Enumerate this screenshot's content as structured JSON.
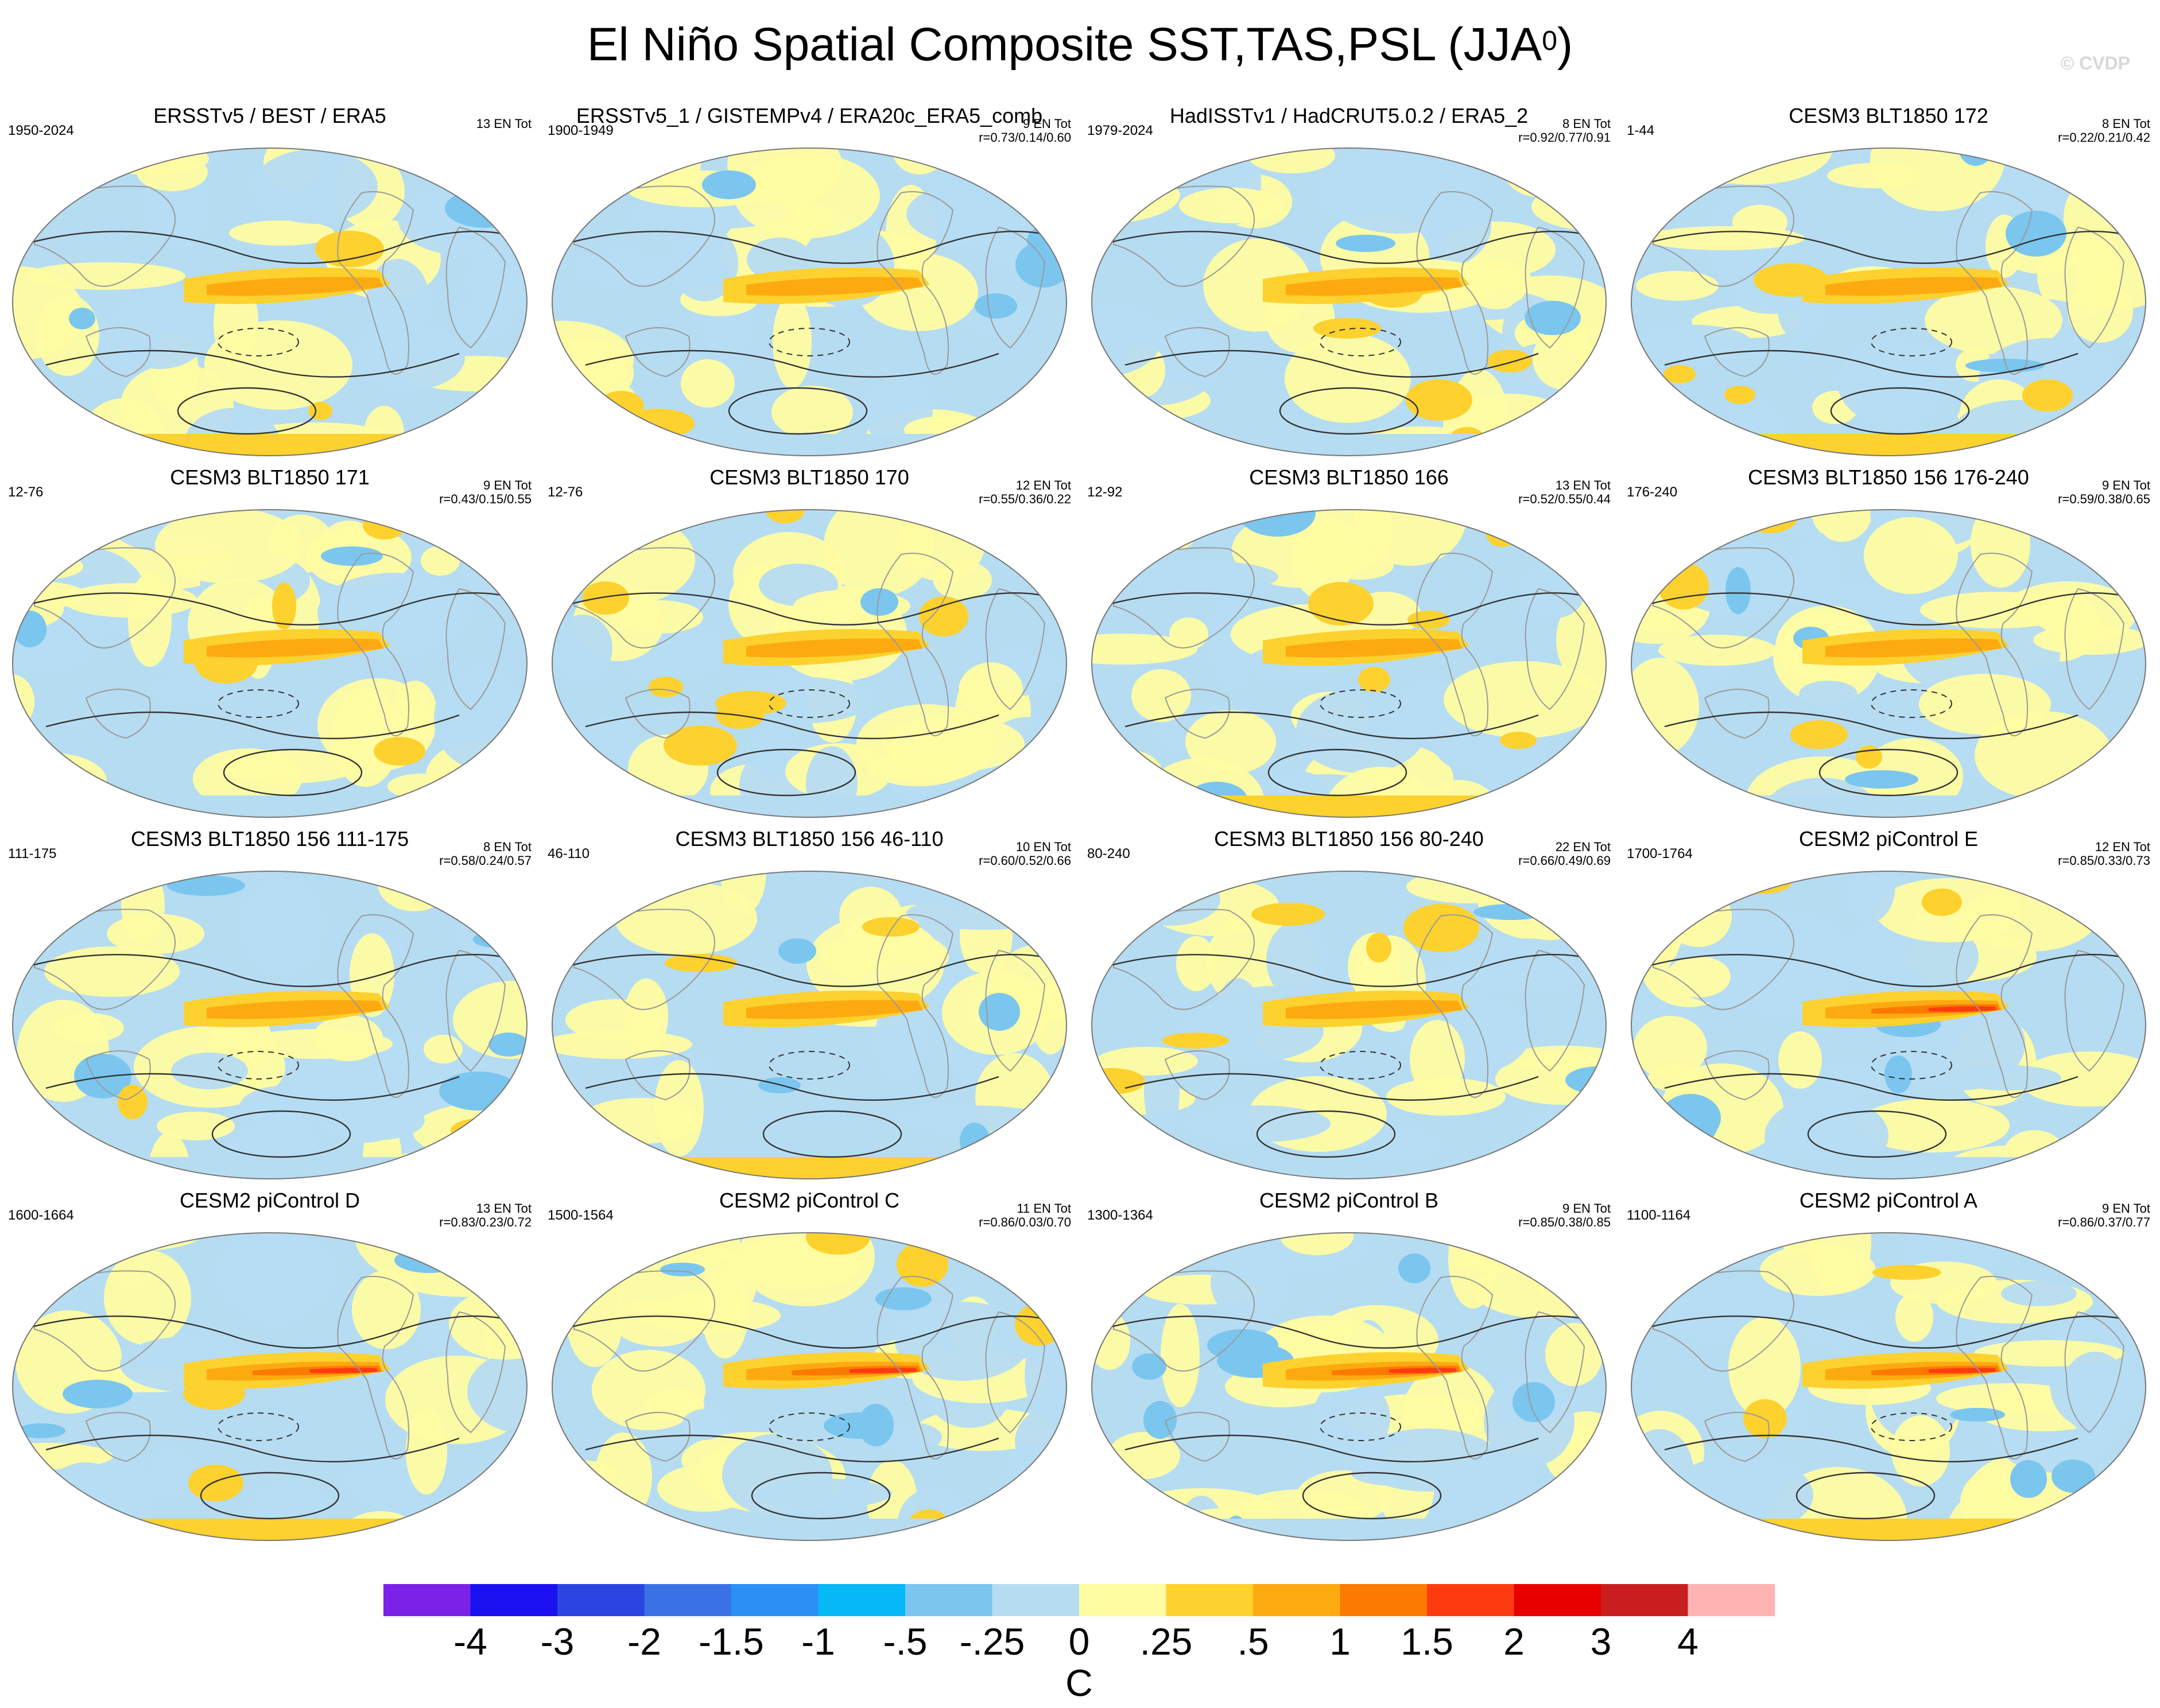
{
  "title": "El Niño Spatial Composite SST,TAS,PSL (JJA",
  "title_sup": "0",
  "title_close": ")",
  "watermark": "© CVDP",
  "panels": [
    {
      "title": "ERSSTv5 / BEST / ERA5",
      "years": "1950-2024",
      "count": "13 EN Tot",
      "r": "",
      "variant": 0
    },
    {
      "title": "ERSSTv5_1 / GISTEMPv4 / ERA20c_ERA5_comb",
      "years": "1900-1949",
      "count": "9 EN Tot",
      "r": "r=0.73/0.14/0.60",
      "variant": 1
    },
    {
      "title": "HadISSTv1 / HadCRUT5.0.2 / ERA5_2",
      "years": "1979-2024",
      "count": "8 EN Tot",
      "r": "r=0.92/0.77/0.91",
      "variant": 2
    },
    {
      "title": "CESM3 BLT1850 172",
      "years": "1-44",
      "count": "8 EN Tot",
      "r": "r=0.22/0.21/0.42",
      "variant": 3
    },
    {
      "title": "CESM3 BLT1850 171",
      "years": "12-76",
      "count": "9 EN Tot",
      "r": "r=0.43/0.15/0.55",
      "variant": 4
    },
    {
      "title": "CESM3 BLT1850 170",
      "years": "12-76",
      "count": "12 EN Tot",
      "r": "r=0.55/0.36/0.22",
      "variant": 5
    },
    {
      "title": "CESM3 BLT1850 166",
      "years": "12-92",
      "count": "13 EN Tot",
      "r": "r=0.52/0.55/0.44",
      "variant": 6
    },
    {
      "title": "CESM3 BLT1850 156 176-240",
      "years": "176-240",
      "count": "9 EN Tot",
      "r": "r=0.59/0.38/0.65",
      "variant": 7
    },
    {
      "title": "CESM3 BLT1850 156 111-175",
      "years": "111-175",
      "count": "8 EN Tot",
      "r": "r=0.58/0.24/0.57",
      "variant": 8
    },
    {
      "title": "CESM3 BLT1850 156 46-110",
      "years": "46-110",
      "count": "10 EN Tot",
      "r": "r=0.60/0.52/0.66",
      "variant": 9
    },
    {
      "title": "CESM3 BLT1850 156 80-240",
      "years": "80-240",
      "count": "22 EN Tot",
      "r": "r=0.66/0.49/0.69",
      "variant": 10
    },
    {
      "title": "CESM2 piControl E",
      "years": "1700-1764",
      "count": "12 EN Tot",
      "r": "r=0.85/0.33/0.73",
      "variant": 11
    },
    {
      "title": "CESM2 piControl D",
      "years": "1600-1664",
      "count": "13 EN Tot",
      "r": "r=0.83/0.23/0.72",
      "variant": 12
    },
    {
      "title": "CESM2 piControl C",
      "years": "1500-1564",
      "count": "11 EN Tot",
      "r": "r=0.86/0.03/0.70",
      "variant": 13
    },
    {
      "title": "CESM2 piControl B",
      "years": "1300-1364",
      "count": "9 EN Tot",
      "r": "r=0.85/0.38/0.85",
      "variant": 14
    },
    {
      "title": "CESM2 piControl A",
      "years": "1100-1164",
      "count": "9 EN Tot",
      "r": "r=0.86/0.37/0.77",
      "variant": 15
    }
  ],
  "colorbar": {
    "labels": [
      "-4",
      "-3",
      "-2",
      "-1.5",
      "-1",
      "-.5",
      "-.25",
      "0",
      ".25",
      ".5",
      "1",
      "1.5",
      "2",
      "3",
      "4"
    ],
    "colors": [
      "#7b22e8",
      "#1a10f0",
      "#2a45e0",
      "#3a72e6",
      "#2a90f6",
      "#06b8f6",
      "#7ac6ef",
      "#b6dcf2",
      "#fffca2",
      "#fdd12e",
      "#fdaa10",
      "#fd7a00",
      "#fc3c10",
      "#e80000",
      "#c81e20",
      "#ffb4b4"
    ],
    "unit": "C"
  },
  "chart_data": {
    "type": "heatmap",
    "title": "El Niño Spatial Composite SST,TAS,PSL (JJA0)",
    "colorbar_unit": "C",
    "colorbar_levels": [
      -4,
      -3,
      -2,
      -1.5,
      -1,
      -0.5,
      -0.25,
      0,
      0.25,
      0.5,
      1,
      1.5,
      2,
      3,
      4
    ],
    "panels": [
      {
        "name": "ERSSTv5 / BEST / ERA5",
        "period": "1950-2024",
        "events": 13
      },
      {
        "name": "ERSSTv5_1 / GISTEMPv4 / ERA20c_ERA5_comb",
        "period": "1900-1949",
        "events": 9,
        "r": [
          0.73,
          0.14,
          0.6
        ]
      },
      {
        "name": "HadISSTv1 / HadCRUT5.0.2 / ERA5_2",
        "period": "1979-2024",
        "events": 8,
        "r": [
          0.92,
          0.77,
          0.91
        ]
      },
      {
        "name": "CESM3 BLT1850 172",
        "period": "1-44",
        "events": 8,
        "r": [
          0.22,
          0.21,
          0.42
        ]
      },
      {
        "name": "CESM3 BLT1850 171",
        "period": "12-76",
        "events": 9,
        "r": [
          0.43,
          0.15,
          0.55
        ]
      },
      {
        "name": "CESM3 BLT1850 170",
        "period": "12-76",
        "events": 12,
        "r": [
          0.55,
          0.36,
          0.22
        ]
      },
      {
        "name": "CESM3 BLT1850 166",
        "period": "12-92",
        "events": 13,
        "r": [
          0.52,
          0.55,
          0.44
        ]
      },
      {
        "name": "CESM3 BLT1850 156 176-240",
        "period": "176-240",
        "events": 9,
        "r": [
          0.59,
          0.38,
          0.65
        ]
      },
      {
        "name": "CESM3 BLT1850 156 111-175",
        "period": "111-175",
        "events": 8,
        "r": [
          0.58,
          0.24,
          0.57
        ]
      },
      {
        "name": "CESM3 BLT1850 156 46-110",
        "period": "46-110",
        "events": 10,
        "r": [
          0.6,
          0.52,
          0.66
        ]
      },
      {
        "name": "CESM3 BLT1850 156 80-240",
        "period": "80-240",
        "events": 22,
        "r": [
          0.66,
          0.49,
          0.69
        ]
      },
      {
        "name": "CESM2 piControl E",
        "period": "1700-1764",
        "events": 12,
        "r": [
          0.85,
          0.33,
          0.73
        ]
      },
      {
        "name": "CESM2 piControl D",
        "period": "1600-1664",
        "events": 13,
        "r": [
          0.83,
          0.23,
          0.72
        ]
      },
      {
        "name": "CESM2 piControl C",
        "period": "1500-1564",
        "events": 11,
        "r": [
          0.86,
          0.03,
          0.7
        ]
      },
      {
        "name": "CESM2 piControl B",
        "period": "1300-1364",
        "events": 9,
        "r": [
          0.85,
          0.38,
          0.85
        ]
      },
      {
        "name": "CESM2 piControl A",
        "period": "1100-1164",
        "events": 9,
        "r": [
          0.86,
          0.37,
          0.77
        ]
      }
    ]
  }
}
